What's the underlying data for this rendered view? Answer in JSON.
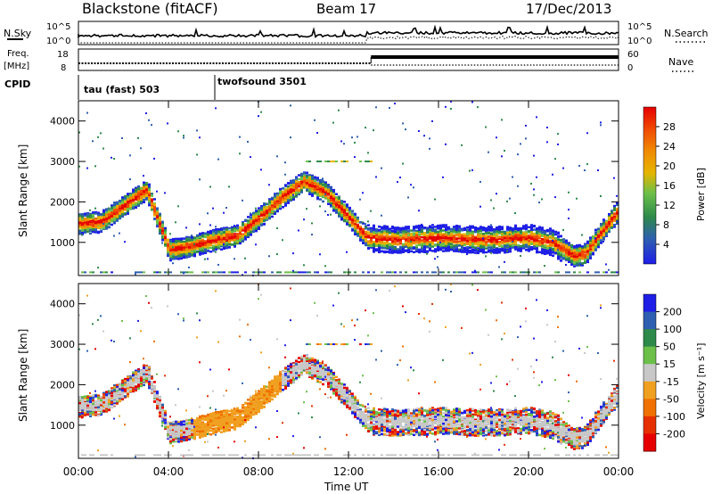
{
  "header": {
    "station": "Blackstone (fitACF)",
    "beam": "Beam 17",
    "date": "17/Dec/2013"
  },
  "noise_panel": {
    "left_label": "N.Sky",
    "right_label": "N.Search",
    "ticks": [
      "10^5",
      "10^0"
    ]
  },
  "freq_panel": {
    "left_label_1": "Freq.",
    "left_label_2": "[MHz]",
    "left_ticks": [
      "18",
      "8"
    ],
    "right_label": "Nave",
    "right_ticks": [
      "60",
      "0"
    ]
  },
  "cpid_panel": {
    "label": "CPID",
    "modes": [
      "tau (fast) 503",
      "twofsound 3501"
    ]
  },
  "colors": {
    "power_scale": [
      "#1e1ee6",
      "#2e5fb0",
      "#2e8a4a",
      "#6cc04a",
      "#e6b400",
      "#f08a00",
      "#f04a00",
      "#e60000"
    ],
    "velocity_scale": [
      "#1e1ee6",
      "#2e5fb0",
      "#2e8a4a",
      "#6cc04a",
      "#c8c8c8",
      "#f0a020",
      "#f07000",
      "#e63000",
      "#e60000"
    ]
  },
  "chart_data": [
    {
      "type": "heatmap",
      "title": "",
      "xlabel": "Time UT",
      "ylabel": "Slant Range [km]",
      "x_ticks": [
        "00:00",
        "04:00",
        "08:00",
        "12:00",
        "16:00",
        "20:00",
        "00:00"
      ],
      "y_ticks": [
        "1000",
        "2000",
        "3000",
        "4000"
      ],
      "ylim": [
        180,
        4500
      ],
      "colorbar": {
        "label": "Power [dB]",
        "ticks": [
          "4",
          "8",
          "12",
          "16",
          "20",
          "24",
          "28"
        ],
        "range": [
          0,
          32
        ]
      },
      "echo_band": {
        "time_h": [
          0,
          1,
          2,
          3,
          4,
          5,
          6,
          7,
          8,
          9,
          10,
          11,
          12,
          12.8,
          14,
          16,
          18,
          20,
          21,
          22,
          22.5,
          23,
          24
        ],
        "range_km": [
          1450,
          1500,
          1900,
          2300,
          800,
          900,
          1050,
          1150,
          1600,
          2100,
          2500,
          2200,
          1600,
          1100,
          1050,
          1100,
          1050,
          1100,
          1000,
          650,
          700,
          1100,
          1800
        ]
      }
    },
    {
      "type": "heatmap",
      "title": "",
      "xlabel": "Time UT",
      "ylabel": "Slant Range [km]",
      "x_ticks": [
        "00:00",
        "04:00",
        "08:00",
        "12:00",
        "16:00",
        "20:00",
        "00:00"
      ],
      "y_ticks": [
        "1000",
        "2000",
        "3000",
        "4000"
      ],
      "ylim": [
        180,
        4500
      ],
      "colorbar": {
        "label": "Velocity [m s⁻¹]",
        "ticks": [
          "200",
          "100",
          "50",
          "15",
          "-15",
          "-50",
          "-100",
          "-200"
        ],
        "range": [
          -250,
          250
        ]
      }
    }
  ]
}
